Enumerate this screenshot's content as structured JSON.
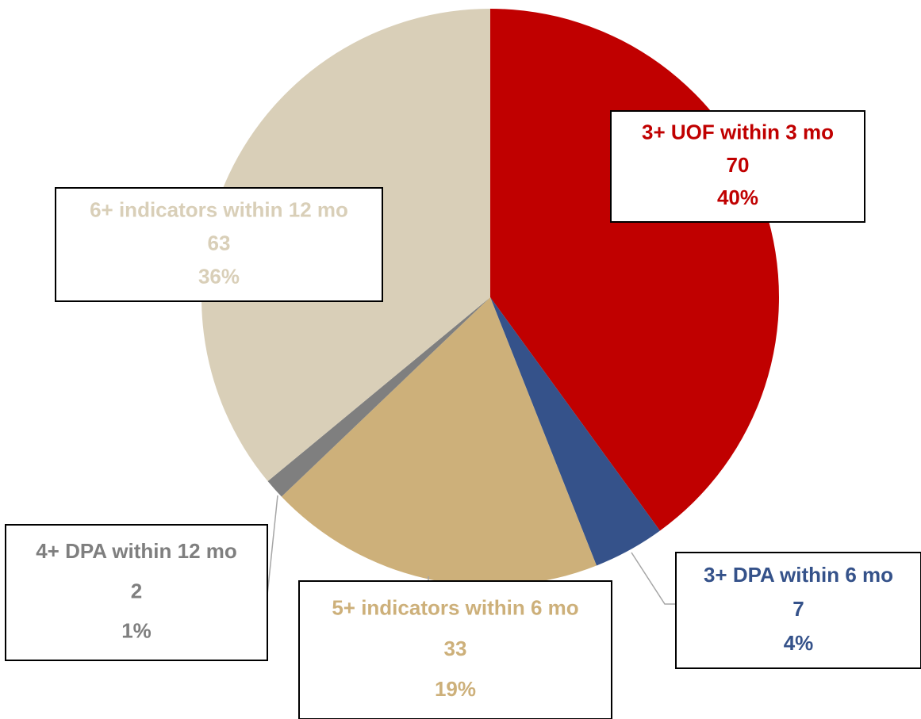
{
  "chart_data": {
    "type": "pie",
    "categories": [
      "3+ UOF within 3 mo",
      "3+ DPA within 6 mo",
      "5+ indicators within 6 mo",
      "4+ DPA within 12 mo",
      "6+ indicators within 12 mo"
    ],
    "values": [
      70,
      7,
      33,
      2,
      63
    ],
    "percents": [
      40,
      4,
      19,
      1,
      36
    ],
    "percent_labels": [
      "40%",
      "4%",
      "19%",
      "1%",
      "36%"
    ],
    "colors": [
      "#c00000",
      "#35528a",
      "#cdb07a",
      "#7f7f7f",
      "#d9cfb8"
    ]
  }
}
